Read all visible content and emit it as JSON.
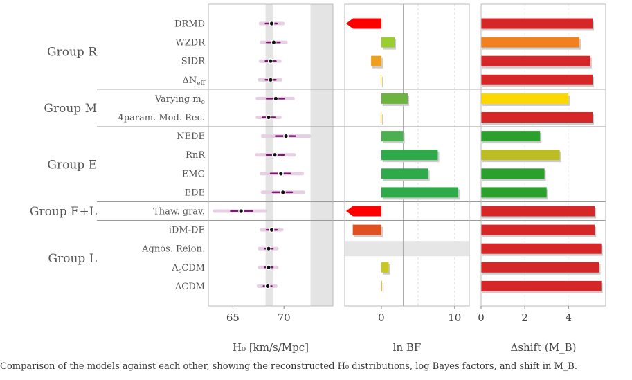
{
  "chart_data": [
    {
      "type": "scatter",
      "xlabel": "H₀ [km/s/Mpc]",
      "xticks": [
        65,
        70
      ],
      "xlim": [
        62.6,
        74.8
      ],
      "shaded_bands": [
        [
          68.2,
          68.9
        ],
        [
          72.6,
          74.8
        ]
      ],
      "rows": [
        {
          "label": "DRMD",
          "center": 68.8,
          "err68": [
            68.2,
            69.3
          ],
          "err95": [
            67.7,
            69.9
          ]
        },
        {
          "label": "WZDR",
          "center": 69.0,
          "err68": [
            68.3,
            69.6
          ],
          "err95": [
            67.8,
            70.2
          ]
        },
        {
          "label": "SIDR",
          "center": 68.7,
          "err68": [
            68.2,
            69.2
          ],
          "err95": [
            67.7,
            69.6
          ]
        },
        {
          "label": "ΔN_eff",
          "center": 68.7,
          "err68": [
            68.2,
            69.2
          ],
          "err95": [
            67.6,
            69.7
          ]
        },
        {
          "label": "Varying m_e",
          "center": 69.2,
          "err68": [
            68.3,
            70.0
          ],
          "err95": [
            67.4,
            70.9
          ]
        },
        {
          "label": "4param. Mod. Rec.",
          "center": 68.5,
          "err68": [
            67.9,
            69.1
          ],
          "err95": [
            67.4,
            69.6
          ]
        },
        {
          "label": "NEDE",
          "center": 70.2,
          "err68": [
            69.2,
            71.1
          ],
          "err95": [
            67.9,
            72.5
          ]
        },
        {
          "label": "RnR",
          "center": 69.1,
          "err68": [
            68.3,
            70.0
          ],
          "err95": [
            67.3,
            71.0
          ]
        },
        {
          "label": "EMG",
          "center": 69.7,
          "err68": [
            68.7,
            70.6
          ],
          "err95": [
            67.8,
            71.8
          ]
        },
        {
          "label": "EDE",
          "center": 69.9,
          "err68": [
            68.9,
            70.8
          ],
          "err95": [
            67.9,
            71.9
          ]
        },
        {
          "label": "Thaw. grav.",
          "center": 65.8,
          "err68": [
            64.8,
            66.9
          ],
          "err95": [
            63.2,
            68.2
          ]
        },
        {
          "label": "iDM-DE",
          "center": 68.8,
          "err68": [
            68.3,
            69.3
          ],
          "err95": [
            67.8,
            69.8
          ]
        },
        {
          "label": "Agnos. Reion.",
          "center": 68.5,
          "err68": [
            68.1,
            68.9
          ],
          "err95": [
            67.6,
            69.3
          ]
        },
        {
          "label": "Λ_sCDM",
          "center": 68.5,
          "err68": [
            68.1,
            68.9
          ],
          "err95": [
            67.6,
            69.3
          ]
        },
        {
          "label": "ΛCDM",
          "center": 68.4,
          "err68": [
            68.0,
            68.8
          ],
          "err95": [
            67.5,
            69.2
          ]
        }
      ]
    },
    {
      "type": "bar",
      "xlabel": "ln BF",
      "xticks": [
        0,
        10
      ],
      "xlim": [
        -5,
        12
      ],
      "reference_line": 3,
      "values": [
        {
          "label": "DRMD",
          "value": -5,
          "color": "#ff0000",
          "arrow": true
        },
        {
          "label": "WZDR",
          "value": 1.8,
          "color": "#9acd32"
        },
        {
          "label": "SIDR",
          "value": -1.4,
          "color": "#f0a020"
        },
        {
          "label": "ΔN_eff",
          "value": -0.1,
          "color": "#f0c020"
        },
        {
          "label": "Varying m_e",
          "value": 3.6,
          "color": "#6db33f"
        },
        {
          "label": "4param. Mod. Rec.",
          "value": -0.1,
          "color": "#f0c020"
        },
        {
          "label": "NEDE",
          "value": 3.0,
          "color": "#4caf50"
        },
        {
          "label": "RnR",
          "value": 7.7,
          "color": "#2eaa4a"
        },
        {
          "label": "EMG",
          "value": 6.4,
          "color": "#2eaa4a"
        },
        {
          "label": "EDE",
          "value": 10.5,
          "color": "#2eaa4a"
        },
        {
          "label": "Thaw. grav.",
          "value": -5,
          "color": "#ff0000",
          "arrow": true
        },
        {
          "label": "iDM-DE",
          "value": -3.9,
          "color": "#e05020"
        },
        {
          "label": "Agnos. Reion.",
          "value": null,
          "color": "#e6e6e6"
        },
        {
          "label": "Λ_sCDM",
          "value": 1.0,
          "color": "#c8c820"
        },
        {
          "label": "ΛCDM",
          "value": 0.0,
          "color": "#f0c020"
        }
      ]
    },
    {
      "type": "bar",
      "xlabel": "Δshift (M_B)",
      "xticks": [
        0,
        2,
        4
      ],
      "xlim": [
        0,
        5.7
      ],
      "values": [
        {
          "label": "DRMD",
          "value": 5.1,
          "color": "#d62728"
        },
        {
          "label": "WZDR",
          "value": 4.5,
          "color": "#f08020"
        },
        {
          "label": "SIDR",
          "value": 5.0,
          "color": "#d62728"
        },
        {
          "label": "ΔN_eff",
          "value": 5.1,
          "color": "#d62728"
        },
        {
          "label": "Varying m_e",
          "value": 4.0,
          "color": "#ffd700"
        },
        {
          "label": "4param. Mod. Rec.",
          "value": 5.1,
          "color": "#d62728"
        },
        {
          "label": "NEDE",
          "value": 2.7,
          "color": "#2ca02c"
        },
        {
          "label": "RnR",
          "value": 3.6,
          "color": "#bcbd22"
        },
        {
          "label": "EMG",
          "value": 2.9,
          "color": "#2ca02c"
        },
        {
          "label": "EDE",
          "value": 3.0,
          "color": "#2ca02c"
        },
        {
          "label": "Thaw. grav.",
          "value": 5.2,
          "color": "#d62728"
        },
        {
          "label": "iDM-DE",
          "value": 5.2,
          "color": "#d62728"
        },
        {
          "label": "Agnos. Reion.",
          "value": 5.5,
          "color": "#d62728"
        },
        {
          "label": "Λ_sCDM",
          "value": 5.4,
          "color": "#d62728"
        },
        {
          "label": "ΛCDM",
          "value": 5.5,
          "color": "#d62728"
        }
      ]
    }
  ],
  "groups": [
    {
      "name": "Group R",
      "rows": [
        0,
        3
      ]
    },
    {
      "name": "Group M",
      "rows": [
        4,
        5
      ]
    },
    {
      "name": "Group E",
      "rows": [
        6,
        9
      ]
    },
    {
      "name": "Group E+L",
      "rows": [
        10,
        10
      ]
    },
    {
      "name": "Group L",
      "rows": [
        11,
        14
      ]
    }
  ],
  "caption": "Comparison of the models against each other, showing the reconstructed H₀ distributions, log Bayes factors, and shift in M_B."
}
